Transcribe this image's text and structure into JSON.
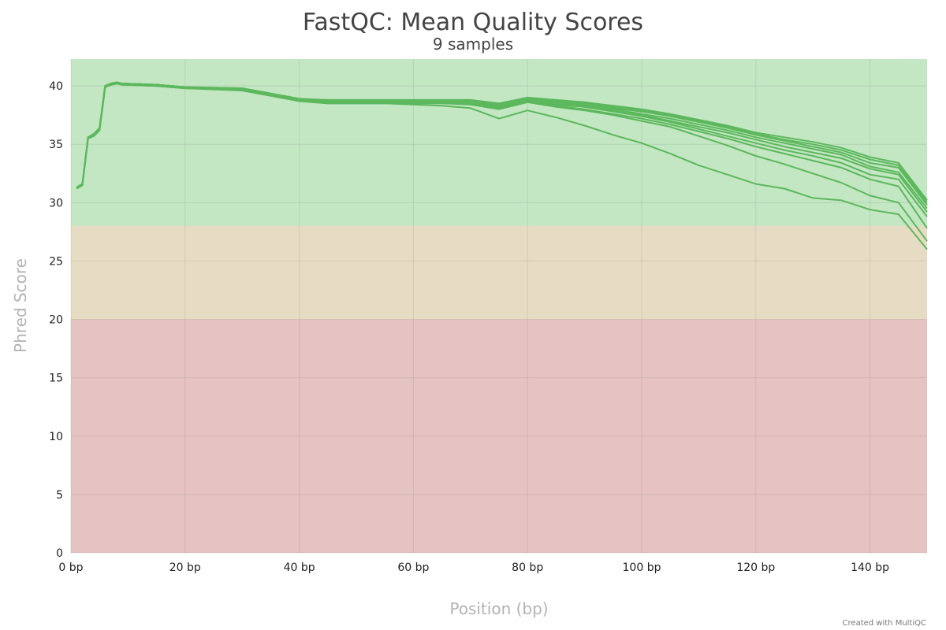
{
  "chart_data": {
    "type": "line",
    "title": "FastQC: Mean Quality Scores",
    "subtitle": "9 samples",
    "xlabel": "Position (bp)",
    "ylabel": "Phred Score",
    "xlim": [
      0,
      150
    ],
    "ylim": [
      0,
      42.3
    ],
    "x_ticks": [
      0,
      20,
      40,
      60,
      80,
      100,
      120,
      140
    ],
    "x_tick_labels": [
      "0 bp",
      "20 bp",
      "40 bp",
      "60 bp",
      "80 bp",
      "100 bp",
      "120 bp",
      "140 bp"
    ],
    "y_ticks": [
      0,
      5,
      10,
      15,
      20,
      25,
      30,
      35,
      40
    ],
    "y_tick_labels": [
      "0",
      "5",
      "10",
      "15",
      "20",
      "25",
      "30",
      "35",
      "40"
    ],
    "grid": true,
    "legend": false,
    "bands": [
      {
        "from": 28,
        "to": 42.3,
        "color": "#c3e6c3"
      },
      {
        "from": 20,
        "to": 28,
        "color": "#e6dcc3"
      },
      {
        "from": 0,
        "to": 20,
        "color": "#e6c3c3"
      }
    ],
    "line_color": "#5cb85c",
    "x": [
      1,
      2,
      3,
      4,
      5,
      6,
      7,
      8,
      9,
      15,
      20,
      30,
      40,
      45,
      50,
      55,
      60,
      65,
      70,
      75,
      80,
      85,
      90,
      95,
      100,
      105,
      110,
      115,
      120,
      125,
      130,
      135,
      140,
      145,
      150
    ],
    "series": [
      {
        "values": [
          31.3,
          31.6,
          35.6,
          35.9,
          36.4,
          40.0,
          40.2,
          40.3,
          40.2,
          40.1,
          39.9,
          39.8,
          38.9,
          38.8,
          38.8,
          38.8,
          38.8,
          38.8,
          38.8,
          38.5,
          39.0,
          38.8,
          38.6,
          38.3,
          38.0,
          37.6,
          37.1,
          36.6,
          36.0,
          35.6,
          35.2,
          34.7,
          33.9,
          33.4,
          30.2
        ]
      },
      {
        "values": [
          31.3,
          31.6,
          35.6,
          35.8,
          36.3,
          40.0,
          40.2,
          40.3,
          40.2,
          40.1,
          39.9,
          39.8,
          38.9,
          38.7,
          38.7,
          38.7,
          38.7,
          38.7,
          38.7,
          38.4,
          38.9,
          38.7,
          38.5,
          38.2,
          37.9,
          37.5,
          37.0,
          36.5,
          35.9,
          35.4,
          35.0,
          34.5,
          33.7,
          33.2,
          30.0
        ]
      },
      {
        "values": [
          31.2,
          31.5,
          35.5,
          35.7,
          36.2,
          39.9,
          40.1,
          40.2,
          40.2,
          40.1,
          39.9,
          39.7,
          38.8,
          38.7,
          38.7,
          38.7,
          38.7,
          38.7,
          38.7,
          38.3,
          38.9,
          38.6,
          38.4,
          38.1,
          37.8,
          37.4,
          36.9,
          36.4,
          35.8,
          35.3,
          34.8,
          34.3,
          33.4,
          33.0,
          29.8
        ]
      },
      {
        "values": [
          31.3,
          31.6,
          35.5,
          35.8,
          36.3,
          40.0,
          40.2,
          40.3,
          40.2,
          40.1,
          39.9,
          39.7,
          38.8,
          38.6,
          38.6,
          38.6,
          38.7,
          38.7,
          38.6,
          38.2,
          38.8,
          38.5,
          38.3,
          38.0,
          37.6,
          37.2,
          36.7,
          36.2,
          35.6,
          35.1,
          34.6,
          34.1,
          33.1,
          32.6,
          29.5
        ]
      },
      {
        "values": [
          31.2,
          31.5,
          35.6,
          35.7,
          36.2,
          39.9,
          40.1,
          40.2,
          40.1,
          40.0,
          39.8,
          39.7,
          38.8,
          38.6,
          38.6,
          38.6,
          38.6,
          38.6,
          38.6,
          38.2,
          38.7,
          38.4,
          38.2,
          37.9,
          37.5,
          37.0,
          36.5,
          36.0,
          35.4,
          34.8,
          34.3,
          33.8,
          32.9,
          32.4,
          29.2
        ]
      },
      {
        "values": [
          31.3,
          31.6,
          35.6,
          35.8,
          36.3,
          40.0,
          40.2,
          40.3,
          40.2,
          40.1,
          39.9,
          39.7,
          38.7,
          38.6,
          38.6,
          38.6,
          38.6,
          38.6,
          38.5,
          38.1,
          38.6,
          38.3,
          38.0,
          37.6,
          37.2,
          36.7,
          36.1,
          35.5,
          34.8,
          34.2,
          33.6,
          33.0,
          32.0,
          31.4,
          27.8
        ]
      },
      {
        "values": [
          31.2,
          31.5,
          35.5,
          35.7,
          36.2,
          39.9,
          40.1,
          40.2,
          40.1,
          40.0,
          39.8,
          39.7,
          38.7,
          38.5,
          38.5,
          38.5,
          38.5,
          38.5,
          38.4,
          38.0,
          38.6,
          38.2,
          37.9,
          37.5,
          37.0,
          36.5,
          35.7,
          34.9,
          34.0,
          33.3,
          32.5,
          31.7,
          30.6,
          30.0,
          26.7
        ]
      },
      {
        "values": [
          31.3,
          31.6,
          35.6,
          35.8,
          36.3,
          40.0,
          40.2,
          40.3,
          40.2,
          40.1,
          39.9,
          39.7,
          38.8,
          38.6,
          38.6,
          38.6,
          38.6,
          38.6,
          38.5,
          38.2,
          38.8,
          38.5,
          38.2,
          37.8,
          37.4,
          36.9,
          36.3,
          35.7,
          35.1,
          34.5,
          34.0,
          33.4,
          32.4,
          32.0,
          28.8
        ]
      },
      {
        "values": [
          31.2,
          31.5,
          35.6,
          35.7,
          36.2,
          39.9,
          40.1,
          40.2,
          40.1,
          40.0,
          39.8,
          39.6,
          38.7,
          38.5,
          38.5,
          38.5,
          38.4,
          38.3,
          38.1,
          37.2,
          37.9,
          37.3,
          36.6,
          35.8,
          35.1,
          34.2,
          33.2,
          32.4,
          31.6,
          31.2,
          30.4,
          30.2,
          29.4,
          29.0,
          26.0
        ]
      }
    ]
  },
  "credit": "Created with MultiQC"
}
